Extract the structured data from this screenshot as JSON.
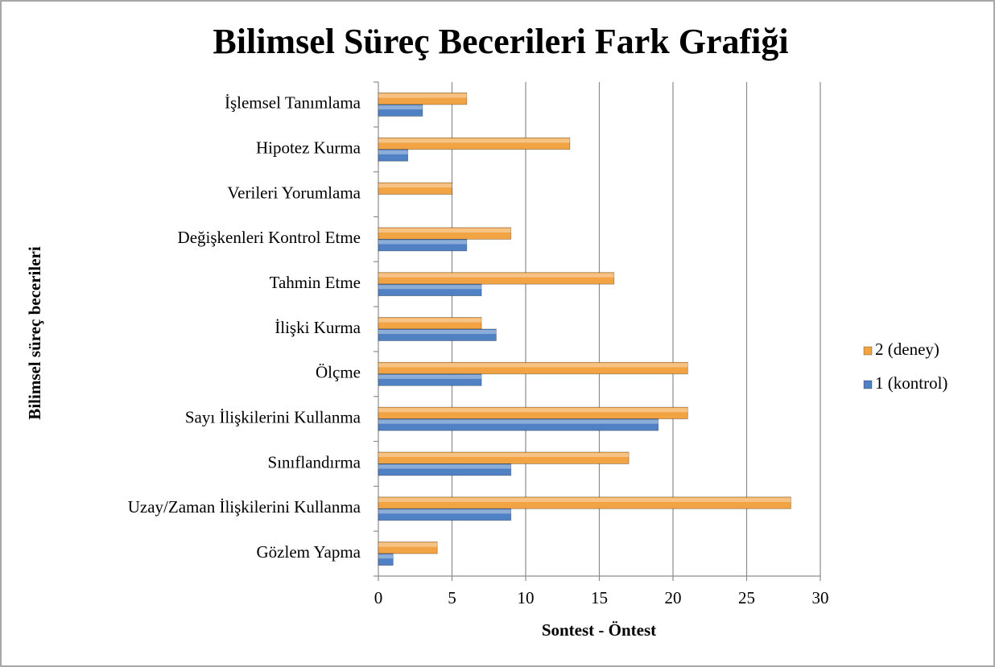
{
  "chart_data": {
    "type": "barh",
    "title": "Bilimsel Süreç Becerileri Fark Grafiği",
    "xlabel": "Sontest - Öntest",
    "ylabel": "Bilimsel süreç becerileri",
    "categories": [
      "İşlemsel Tanımlama",
      "Hipotez Kurma",
      "Verileri Yorumlama",
      "Değişkenleri Kontrol Etme",
      "Tahmin Etme",
      "İlişki Kurma",
      "Ölçme",
      "Sayı İlişkilerini Kullanma",
      "Sınıflandırma",
      "Uzay/Zaman İlişkilerini Kullanma",
      "Gözlem Yapma"
    ],
    "series": [
      {
        "name": "2 (deney)",
        "color": "#f2a444",
        "values": [
          6,
          13,
          5,
          9,
          16,
          7,
          21,
          21,
          17,
          28,
          4
        ]
      },
      {
        "name": "1 (kontrol)",
        "color": "#4f81c4",
        "values": [
          3,
          2,
          0,
          6,
          7,
          8,
          7,
          19,
          9,
          9,
          1
        ]
      }
    ],
    "xlim": [
      0,
      30
    ],
    "xticks": [
      0,
      5,
      10,
      15,
      20,
      25,
      30
    ],
    "grid": true,
    "legend": "right"
  }
}
